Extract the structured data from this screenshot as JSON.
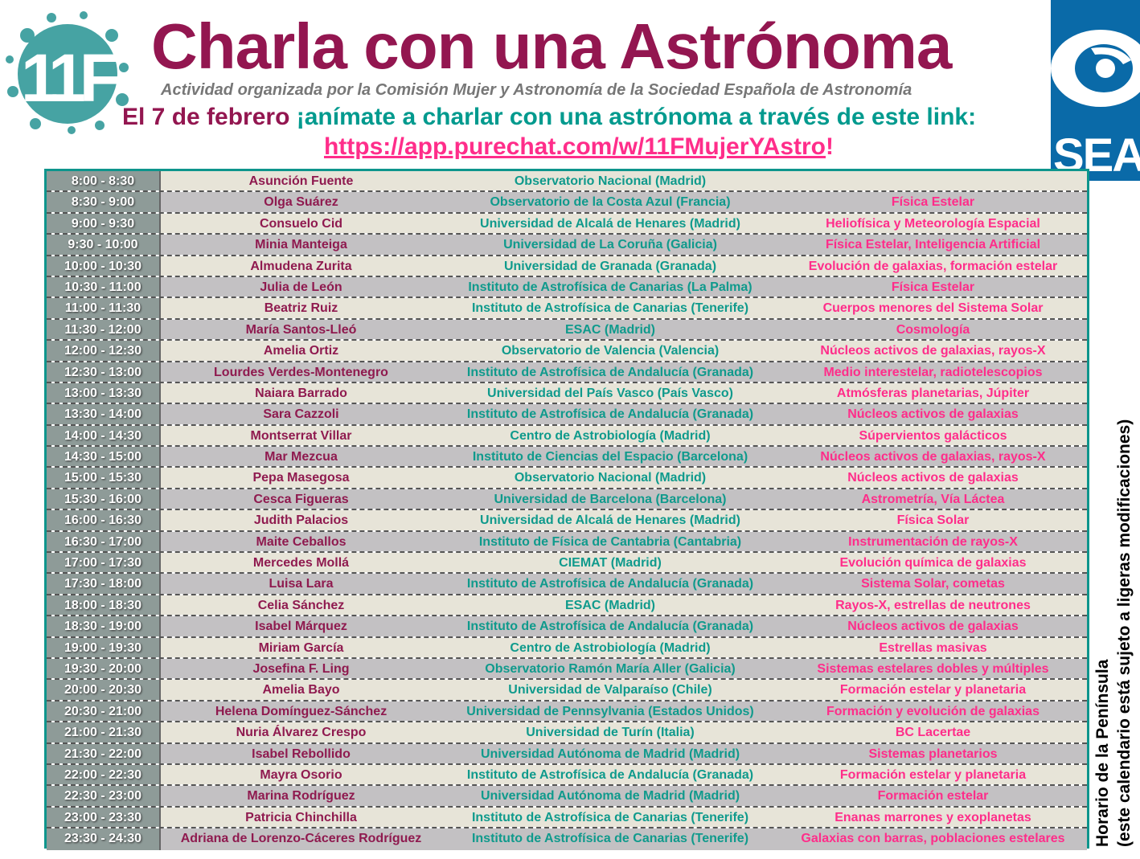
{
  "header": {
    "logo_left_text": "11F",
    "logo_right_text": "SEA",
    "title": "Charla con una Astrónoma",
    "subtitle": "Actividad organizada por la Comisión Mujer y Astronomía de la Sociedad Española de Astronomía",
    "invite_date": "El 7 de febrero",
    "invite_rest": "¡anímate a charlar con una astrónoma a través de este link:",
    "link": "https://app.purechat.com/w/11FMujerYAstro",
    "link_suffix": "!"
  },
  "side_note": {
    "line1": "Horario de la Península",
    "line2": "(este calendario está sujeto a ligeras modificaciones)"
  },
  "colors": {
    "title": "#931650",
    "teal": "#009a8e",
    "link": "#ff2d8a",
    "sea_blue": "#0a6aa8"
  },
  "schedule": [
    {
      "time": "8:00 - 8:30",
      "name": "Asunción Fuente",
      "institution": "Observatorio Nacional (Madrid)",
      "topic": ""
    },
    {
      "time": "8:30 - 9:00",
      "name": "Olga Suárez",
      "institution": "Observatorio de la Costa Azul (Francia)",
      "topic": "Física Estelar"
    },
    {
      "time": "9:00 - 9:30",
      "name": "Consuelo Cid",
      "institution": "Universidad de Alcalá de Henares (Madrid)",
      "topic": "Heliofísica y Meteorología Espacial"
    },
    {
      "time": "9:30 - 10:00",
      "name": "Minia Manteiga",
      "institution": "Universidad de La Coruña (Galicia)",
      "topic": "Física Estelar, Inteligencia Artificial"
    },
    {
      "time": "10:00 - 10:30",
      "name": "Almudena Zurita",
      "institution": "Universidad de Granada (Granada)",
      "topic": "Evolución de galaxias, formación estelar"
    },
    {
      "time": "10:30 - 11:00",
      "name": "Julia de León",
      "institution": "Instituto de Astrofísica de Canarias (La Palma)",
      "topic": "Física Estelar"
    },
    {
      "time": "11:00 - 11:30",
      "name": "Beatriz Ruiz",
      "institution": "Instituto de Astrofísica de Canarias (Tenerife)",
      "topic": "Cuerpos menores del Sistema Solar"
    },
    {
      "time": "11:30 - 12:00",
      "name": "María Santos-Lleó",
      "institution": "ESAC (Madrid)",
      "topic": "Cosmología"
    },
    {
      "time": "12:00 - 12:30",
      "name": "Amelia Ortiz",
      "institution": "Observatorio de Valencia (Valencia)",
      "topic": "Núcleos activos de galaxias, rayos-X"
    },
    {
      "time": "12:30 - 13:00",
      "name": "Lourdes Verdes-Montenegro",
      "institution": "Instituto de Astrofísica de Andalucía (Granada)",
      "topic": "Medio interestelar, radiotelescopios"
    },
    {
      "time": "13:00 - 13:30",
      "name": "Naiara Barrado",
      "institution": "Universidad del País Vasco (País Vasco)",
      "topic": "Atmósferas planetarias, Júpiter"
    },
    {
      "time": "13:30 - 14:00",
      "name": "Sara Cazzoli",
      "institution": "Instituto de Astrofísica de Andalucía (Granada)",
      "topic": "Núcleos activos de galaxias"
    },
    {
      "time": "14:00 - 14:30",
      "name": "Montserrat Villar",
      "institution": "Centro de Astrobiología (Madrid)",
      "topic": "Súpervientos galácticos"
    },
    {
      "time": "14:30 - 15:00",
      "name": "Mar Mezcua",
      "institution": "Instituto de Ciencias del Espacio (Barcelona)",
      "topic": "Núcleos activos de galaxias, rayos-X"
    },
    {
      "time": "15:00 - 15:30",
      "name": "Pepa Masegosa",
      "institution": "Observatorio Nacional (Madrid)",
      "topic": "Núcleos activos de galaxias"
    },
    {
      "time": "15:30 - 16:00",
      "name": "Cesca Figueras",
      "institution": "Universidad de Barcelona (Barcelona)",
      "topic": "Astrometría, Vía Láctea"
    },
    {
      "time": "16:00 - 16:30",
      "name": "Judith Palacios",
      "institution": "Universidad de Alcalá de Henares (Madrid)",
      "topic": "Física Solar"
    },
    {
      "time": "16:30 - 17:00",
      "name": "Maite Ceballos",
      "institution": "Instituto de Física de Cantabria (Cantabria)",
      "topic": "Instrumentación de rayos-X"
    },
    {
      "time": "17:00 - 17:30",
      "name": "Mercedes Mollá",
      "institution": "CIEMAT (Madrid)",
      "topic": "Evolución química de galaxias"
    },
    {
      "time": "17:30 - 18:00",
      "name": "Luisa Lara",
      "institution": "Instituto de Astrofísica de Andalucía (Granada)",
      "topic": "Sistema Solar, cometas"
    },
    {
      "time": "18:00 - 18:30",
      "name": "Celia Sánchez",
      "institution": "ESAC (Madrid)",
      "topic": "Rayos-X, estrellas de neutrones"
    },
    {
      "time": "18:30 - 19:00",
      "name": "Isabel Márquez",
      "institution": "Instituto de Astrofísica de Andalucía (Granada)",
      "topic": "Núcleos activos de galaxias"
    },
    {
      "time": "19:00 - 19:30",
      "name": "Miriam García",
      "institution": "Centro de Astrobiología (Madrid)",
      "topic": "Estrellas masivas"
    },
    {
      "time": "19:30 - 20:00",
      "name": "Josefina F. Ling",
      "institution": "Observatorio Ramón María Aller (Galicia)",
      "topic": "Sistemas estelares dobles y múltiples"
    },
    {
      "time": "20:00 - 20:30",
      "name": "Amelia Bayo",
      "institution": "Universidad de Valparaíso (Chile)",
      "topic": "Formación estelar y planetaria"
    },
    {
      "time": "20:30 - 21:00",
      "name": "Helena Domínguez-Sánchez",
      "institution": "Universidad de Pennsylvania (Estados Unidos)",
      "topic": "Formación y evolución de galaxias"
    },
    {
      "time": "21:00 - 21:30",
      "name": "Nuria Álvarez Crespo",
      "institution": "Universidad de Turín (Italia)",
      "topic": "BC Lacertae"
    },
    {
      "time": "21:30 - 22:00",
      "name": "Isabel Rebollido",
      "institution": "Universidad Autónoma de Madrid (Madrid)",
      "topic": "Sistemas planetarios"
    },
    {
      "time": "22:00 - 22:30",
      "name": "Mayra Osorio",
      "institution": "Instituto de Astrofísica de Andalucía (Granada)",
      "topic": "Formación estelar y planetaria"
    },
    {
      "time": "22:30 - 23:00",
      "name": "Marina Rodríguez",
      "institution": "Universidad Autónoma de Madrid (Madrid)",
      "topic": "Formación estelar"
    },
    {
      "time": "23:00 - 23:30",
      "name": "Patricia Chinchilla",
      "institution": "Instituto de Astrofísica de Canarias (Tenerife)",
      "topic": "Enanas marrones y exoplanetas"
    },
    {
      "time": "23:30 - 24:30",
      "name": "Adriana de Lorenzo-Cáceres Rodríguez",
      "institution": "Instituto de Astrofísica de Canarias (Tenerife)",
      "topic": "Galaxias con barras, poblaciones estelares"
    }
  ]
}
